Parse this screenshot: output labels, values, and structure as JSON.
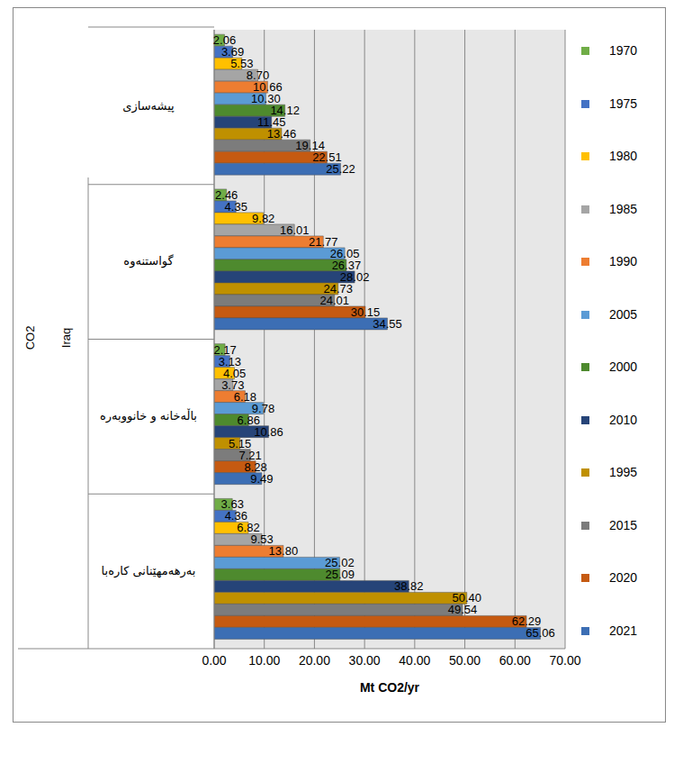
{
  "chart_data": {
    "type": "bar",
    "orientation": "horizontal",
    "annotations": [
      "CO2",
      "Iraq"
    ],
    "x_label": "Mt CO2/yr",
    "categories": [
      "پیشەسازی",
      "گواستنەوە",
      "باڵەخانە و خانووبەرە",
      "بەرهەمهێنانی کارەبا"
    ],
    "series": [
      {
        "name": "1970",
        "color": "#70AD47",
        "values": [
          2.06,
          2.46,
          2.17,
          3.63
        ],
        "value_labels": [
          "2.06",
          "2.46",
          "2.17",
          "3.63"
        ]
      },
      {
        "name": "1975",
        "color": "#4472C4",
        "values": [
          3.69,
          4.35,
          3.13,
          4.36
        ],
        "value_labels": [
          "3.69",
          "4.35",
          "3.13",
          "4.36"
        ]
      },
      {
        "name": "1980",
        "color": "#FFC000",
        "values": [
          5.53,
          9.82,
          4.05,
          6.82
        ],
        "value_labels": [
          "5.53",
          "9.82",
          "4.05",
          "6.82"
        ]
      },
      {
        "name": "1985",
        "color": "#A5A5A5",
        "values": [
          8.7,
          16.01,
          3.73,
          9.53
        ],
        "value_labels": [
          "8.70",
          "16.01",
          "3.73",
          "9.53"
        ]
      },
      {
        "name": "1990",
        "color": "#ED7D31",
        "values": [
          10.66,
          21.77,
          6.18,
          13.8
        ],
        "value_labels": [
          "10.66",
          "21.77",
          "6.18",
          "13.80"
        ]
      },
      {
        "name": "2005",
        "color": "#5B9BD5",
        "values": [
          10.3,
          26.05,
          9.78,
          25.02
        ],
        "value_labels": [
          "10.30",
          "26.05",
          "9.78",
          "25.02"
        ]
      },
      {
        "name": "2000",
        "color": "#4E8A2E",
        "values": [
          14.12,
          26.37,
          6.86,
          25.09
        ],
        "value_labels": [
          "14.12",
          "26.37",
          "6.86",
          "25.09"
        ]
      },
      {
        "name": "2010",
        "color": "#264478",
        "values": [
          11.45,
          28.02,
          10.86,
          38.82
        ],
        "value_labels": [
          "11.45",
          "28.02",
          "10.86",
          "38.82"
        ]
      },
      {
        "name": "1995",
        "color": "#BF9000",
        "values": [
          13.46,
          24.73,
          5.15,
          50.4
        ],
        "value_labels": [
          "13.46",
          "24.73",
          "5.15",
          "50.40"
        ]
      },
      {
        "name": "2015",
        "color": "#7C7C7C",
        "values": [
          19.14,
          24.01,
          7.21,
          49.54
        ],
        "value_labels": [
          "19.14",
          "24.01",
          "7.21",
          "49.54"
        ]
      },
      {
        "name": "2020",
        "color": "#C55A11",
        "values": [
          22.51,
          30.15,
          8.28,
          62.29
        ],
        "value_labels": [
          "22.51",
          "30.15",
          "8.28",
          "62.29"
        ]
      },
      {
        "name": "2021",
        "color": "#3C6EB4",
        "values": [
          25.22,
          34.55,
          9.49,
          65.06
        ],
        "value_labels": [
          "25.22",
          "34.55",
          "9.49",
          "65.06"
        ]
      }
    ],
    "xlim": [
      0,
      70
    ],
    "xticks": [
      {
        "value": 0,
        "label": "0.00"
      },
      {
        "value": 10,
        "label": "10.00"
      },
      {
        "value": 20,
        "label": "20.00"
      },
      {
        "value": 30,
        "label": "30.00"
      },
      {
        "value": 40,
        "label": "40.00"
      },
      {
        "value": 50,
        "label": "50.00"
      },
      {
        "value": 60,
        "label": "60.00"
      },
      {
        "value": 70,
        "label": "70.00"
      }
    ],
    "grid": true,
    "data_labels": true,
    "legend": "right"
  }
}
